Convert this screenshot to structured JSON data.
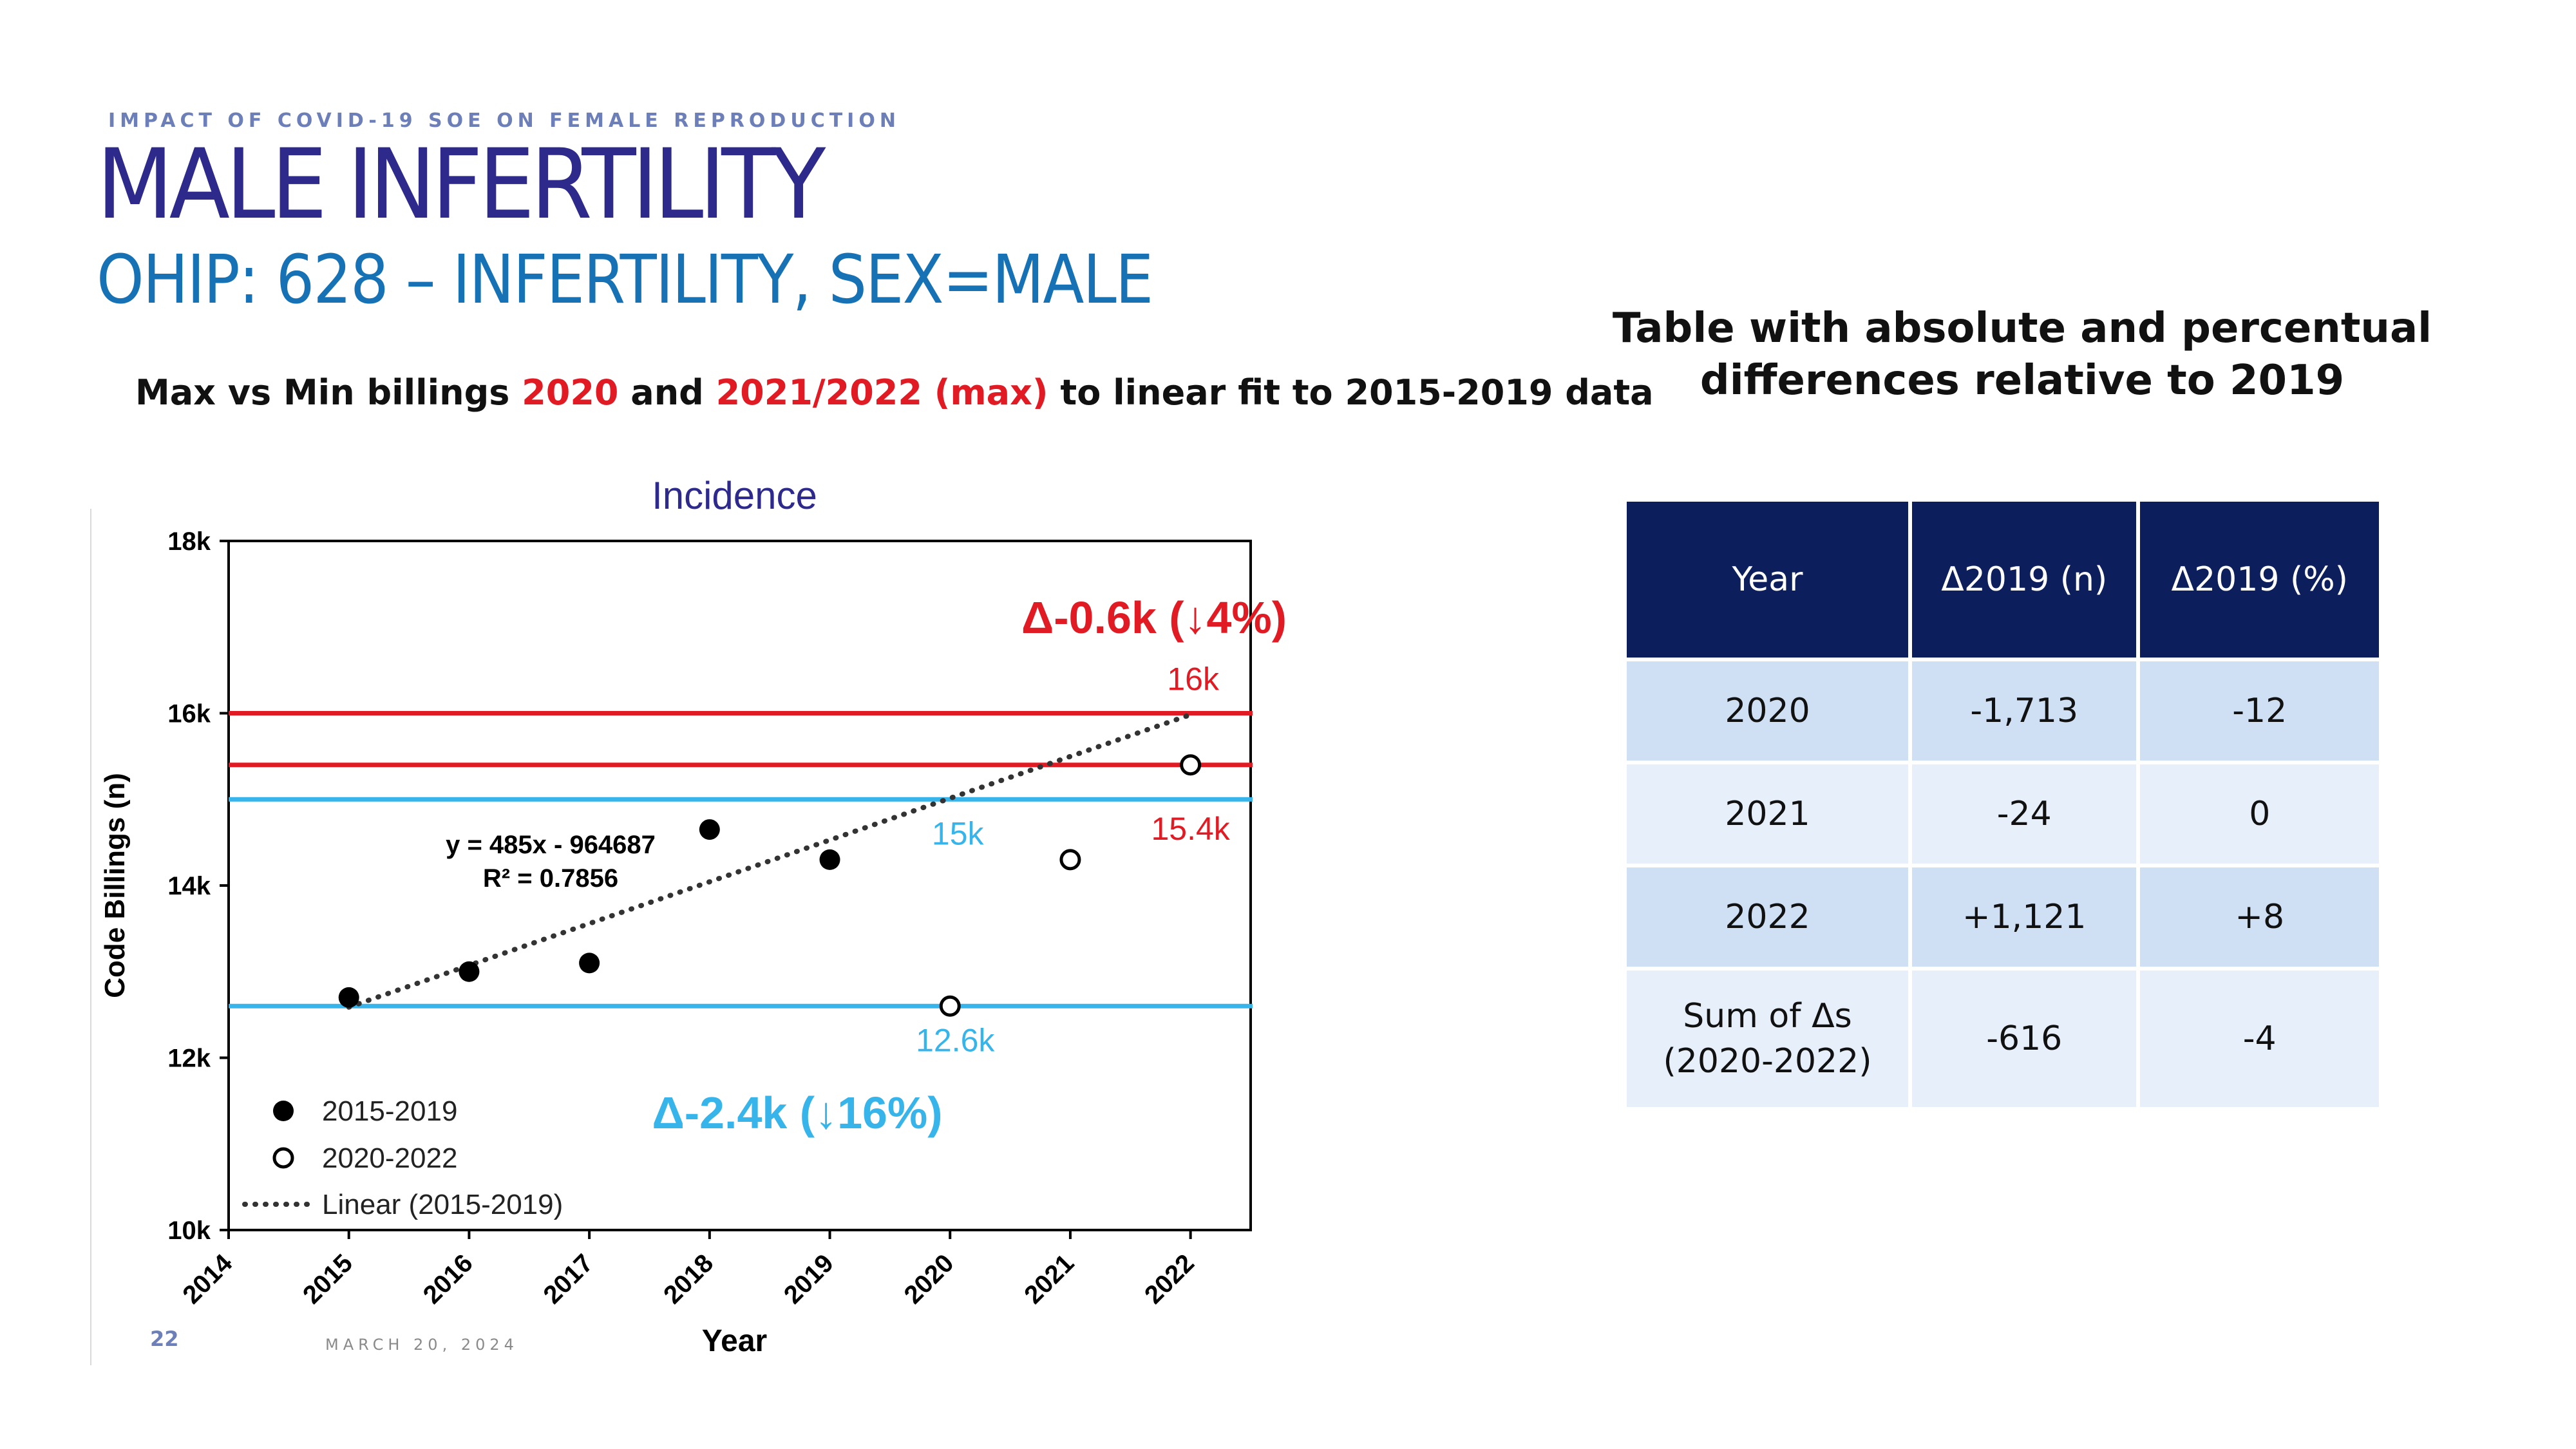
{
  "header": {
    "kicker": "IMPACT OF COVID-19 SOE ON FEMALE REPRODUCTION",
    "title": "MALE INFERTILITY",
    "subtitle": "OHIP: 628 – INFERTILITY, SEX=MALE"
  },
  "lead": {
    "part1": "Max vs Min billings ",
    "year_a": "2020",
    "part2": " and ",
    "year_b": "2021/2022 (max)",
    "part3": " to linear fit to 2015-2019 data"
  },
  "table_title": "Table with absolute and percentual differences relative to 2019",
  "table": {
    "headers": [
      "Year",
      "Δ2019 (n)",
      "Δ2019 (%)"
    ],
    "rows": [
      [
        "2020",
        "-1,713",
        "-12"
      ],
      [
        "2021",
        "-24",
        "0"
      ],
      [
        "2022",
        "+1,121",
        "+8"
      ]
    ],
    "sum_row": {
      "label_line1": "Sum of Δs",
      "label_line2": "(2020-2022)",
      "n": "-616",
      "pct": "-4"
    }
  },
  "footer": {
    "page": "22",
    "date": "MARCH 20, 2024"
  },
  "chart_data": {
    "type": "scatter",
    "title": "Incidence",
    "xlabel": "Year",
    "ylabel": "Code Billings (n)",
    "xlim": [
      2014,
      2022.5
    ],
    "ylim": [
      10000,
      18000
    ],
    "x_ticks": [
      2014,
      2015,
      2016,
      2017,
      2018,
      2019,
      2020,
      2021,
      2022
    ],
    "y_ticks": [
      {
        "v": 10000,
        "label": "10k"
      },
      {
        "v": 12000,
        "label": "12k"
      },
      {
        "v": 14000,
        "label": "14k"
      },
      {
        "v": 16000,
        "label": "16k"
      },
      {
        "v": 18000,
        "label": "18k"
      }
    ],
    "grid": false,
    "legend_position": "bottom-left",
    "series": [
      {
        "name": "2015-2019",
        "marker": "filled-circle",
        "x": [
          2015,
          2016,
          2017,
          2018,
          2019
        ],
        "y": [
          12700,
          13000,
          13100,
          14650,
          14300
        ]
      },
      {
        "name": "2020-2022",
        "marker": "open-circle",
        "x": [
          2020,
          2021,
          2022
        ],
        "y": [
          12600,
          14300,
          15400
        ]
      },
      {
        "name": "Linear (2015-2019)",
        "kind": "trendline",
        "style": "dotted",
        "x": [
          2015,
          2022
        ],
        "y": [
          12588,
          15983
        ]
      }
    ],
    "fit_equation": "y = 485x - 964687",
    "fit_r2": "R² = 0.7856",
    "reference_lines": [
      {
        "y": 16000,
        "color": "#e01b24",
        "label": "16k"
      },
      {
        "y": 15400,
        "color": "#e01b24",
        "label": "15.4k"
      },
      {
        "y": 15000,
        "color": "#37b4ea",
        "label": "15k"
      },
      {
        "y": 12600,
        "color": "#37b4ea",
        "label": "12.6k"
      }
    ],
    "annotations": [
      {
        "text": "Δ-0.6k (↓4%)",
        "color": "#e01b24"
      },
      {
        "text": "Δ-2.4k (↓16%)",
        "color": "#37b4ea"
      }
    ],
    "colors": {
      "red": "#e01b24",
      "blue": "#37b4ea",
      "title": "#2e2a8c"
    }
  }
}
